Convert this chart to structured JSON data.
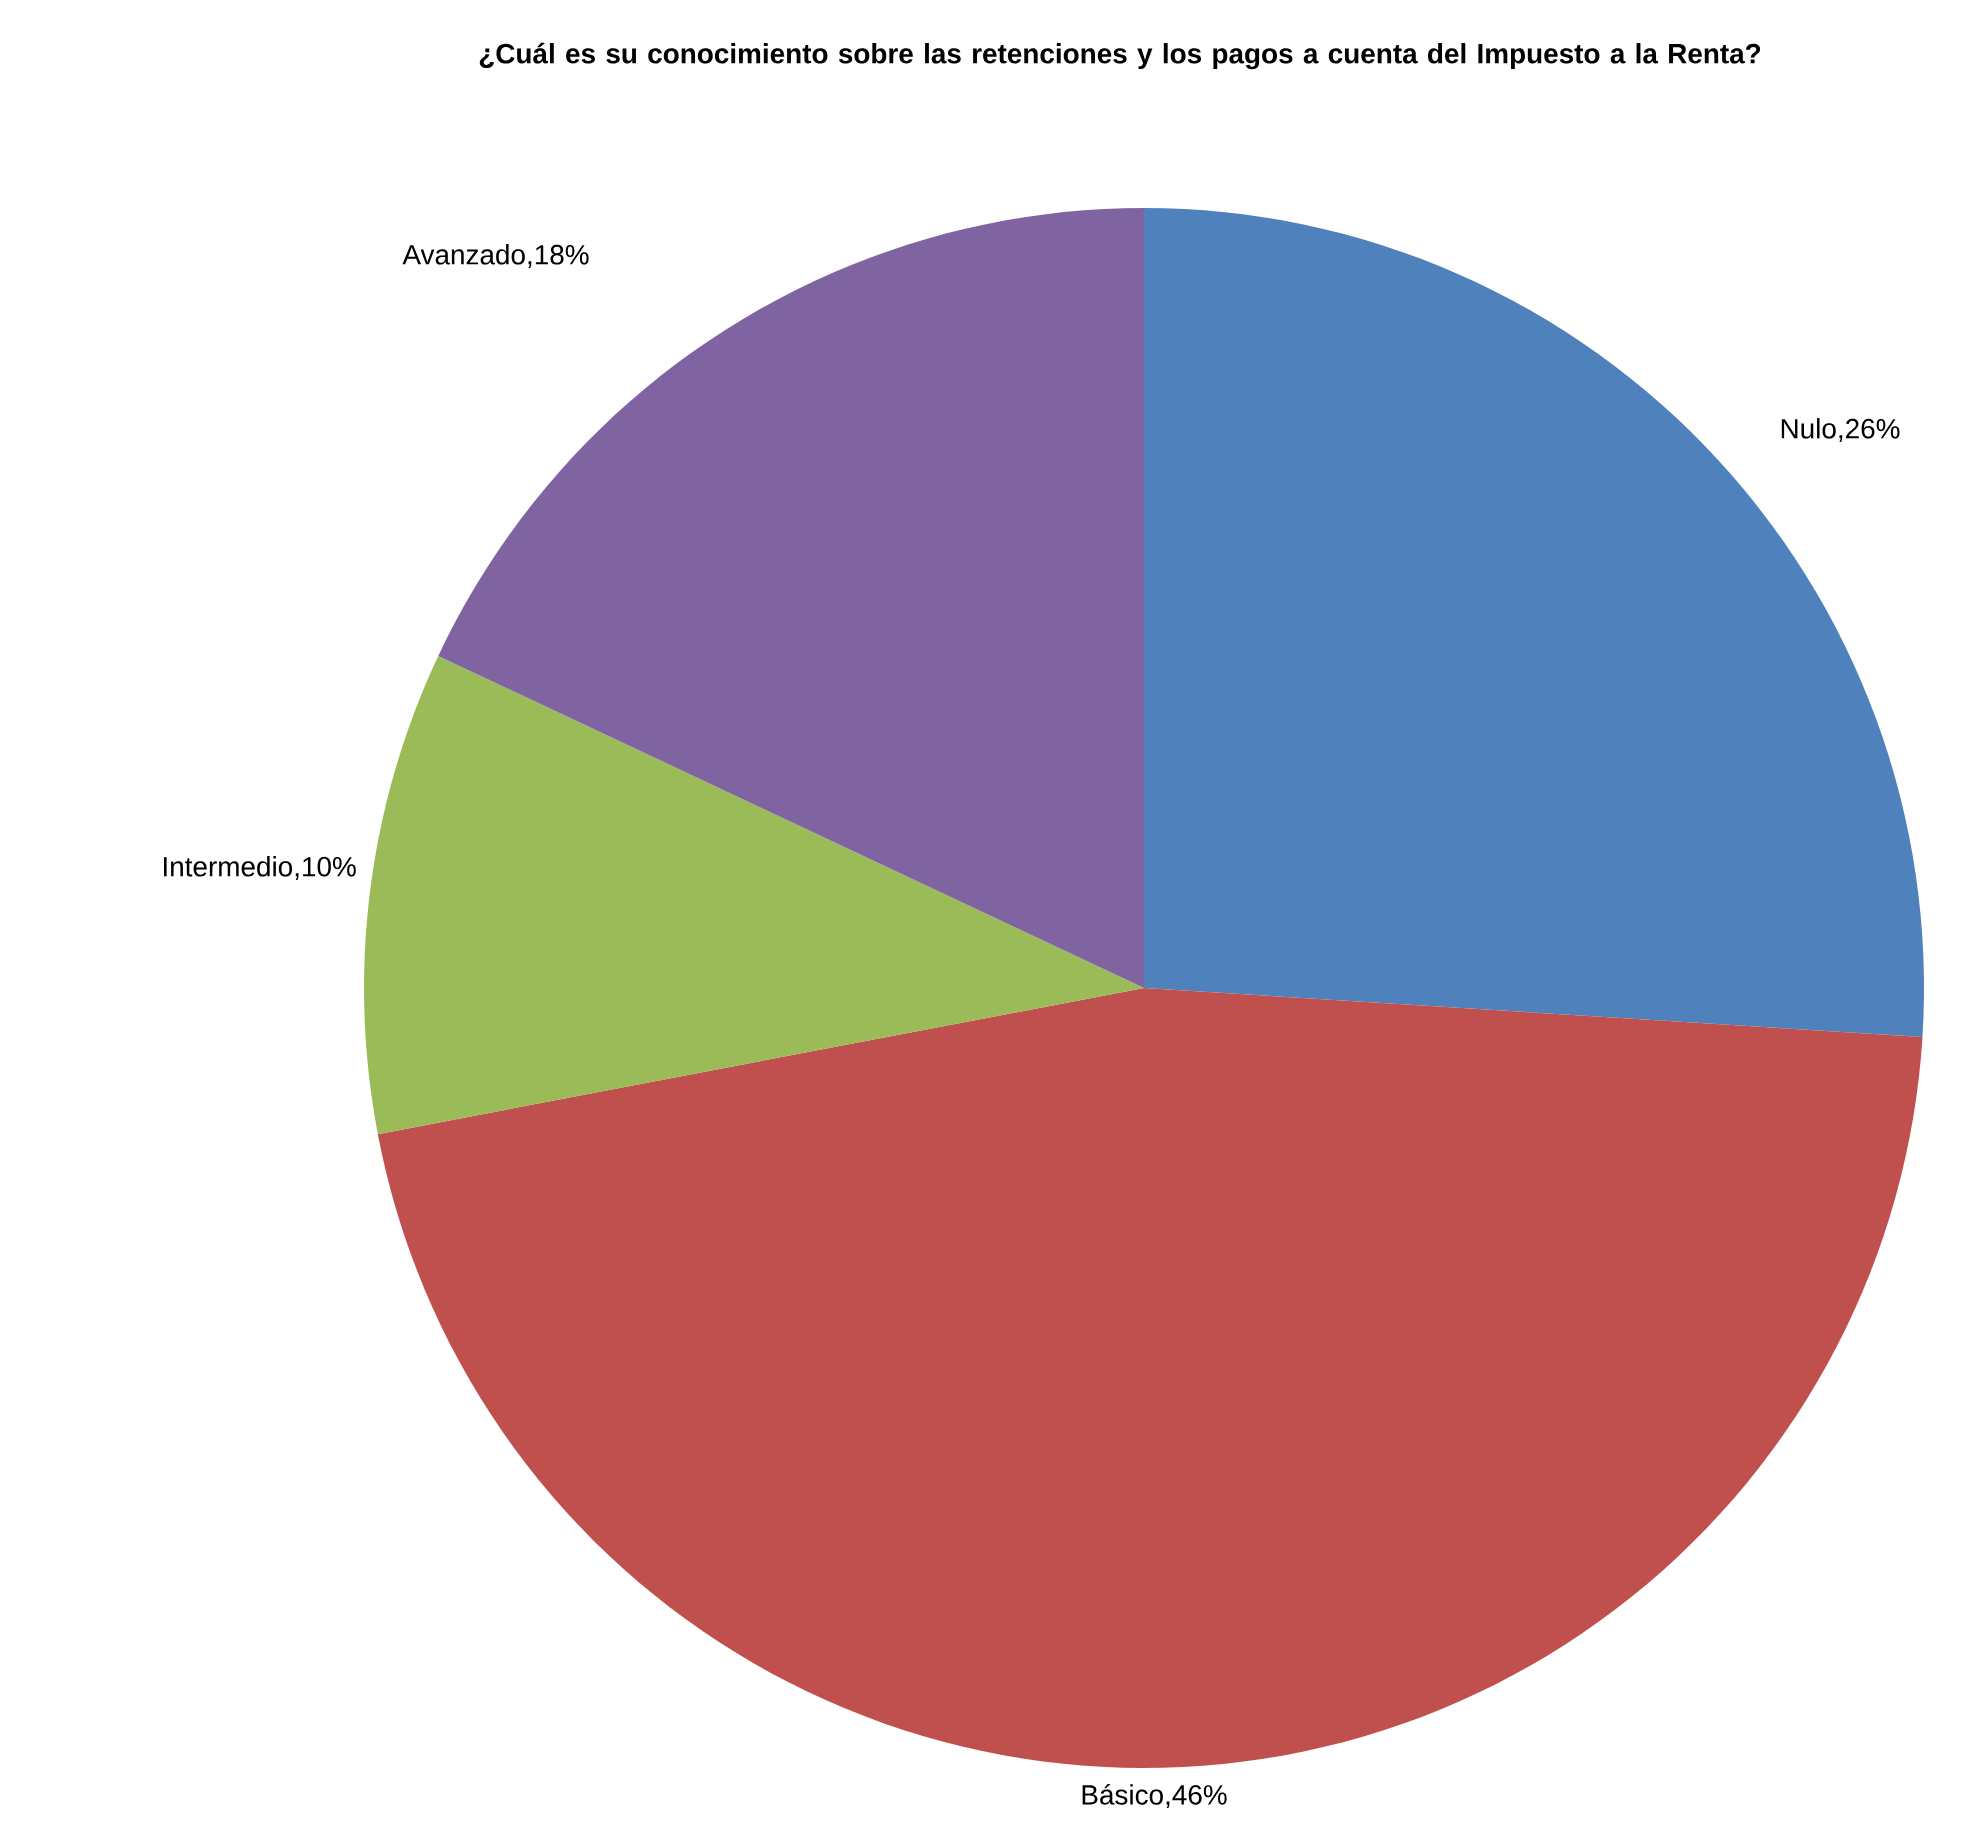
{
  "chart_data": {
    "type": "pie",
    "title": "¿Cuál es su conocimiento sobre las retenciones y los pagos a cuenta del Impuesto a la Renta?",
    "categories": [
      "Nulo",
      "Básico",
      "Intermedio",
      "Avanzado"
    ],
    "values": [
      26,
      46,
      10,
      18
    ],
    "colors": [
      "#4f81bd",
      "#c0504d",
      "#9bbb59",
      "#8064a2"
    ],
    "value_labels": [
      ",26%",
      ",46%",
      ",10%",
      ",18%"
    ]
  }
}
